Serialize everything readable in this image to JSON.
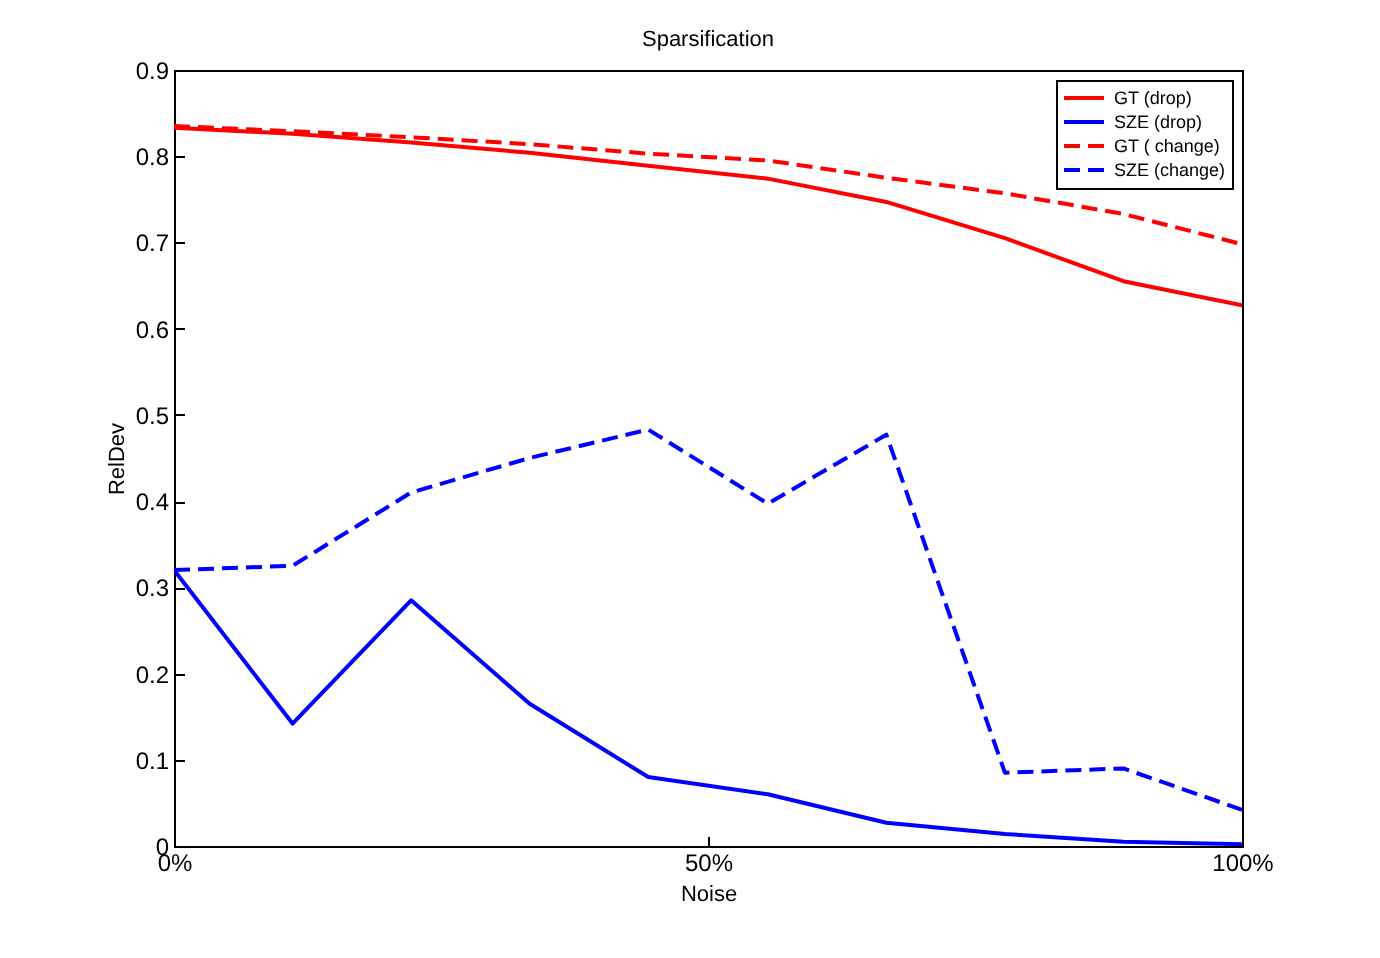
{
  "chart_data": {
    "type": "line",
    "title": "Sparsification",
    "xlabel": "Noise",
    "ylabel": "RelDev",
    "x": [
      0,
      11.1,
      22.2,
      33.3,
      44.4,
      55.6,
      66.7,
      77.8,
      88.9,
      100
    ],
    "xlim": [
      0,
      100
    ],
    "xticks": [
      {
        "value": 0,
        "label": "0%"
      },
      {
        "value": 50,
        "label": "50%"
      },
      {
        "value": 100,
        "label": "100%"
      }
    ],
    "ylim": [
      0,
      0.9
    ],
    "yticks": [
      {
        "value": 0,
        "label": "0"
      },
      0.1,
      0.2,
      0.3,
      0.4,
      0.5,
      0.6,
      0.7,
      0.8,
      0.9
    ],
    "legend": "top right",
    "grid": false,
    "marker": "none",
    "series": [
      {
        "name": "GT (drop)",
        "color": "#ff0000",
        "line_style": "solid",
        "values": [
          0.833,
          0.826,
          0.816,
          0.804,
          0.789,
          0.774,
          0.747,
          0.705,
          0.655,
          0.627
        ]
      },
      {
        "name": "SZE (drop)",
        "color": "#0000ff",
        "line_style": "solid",
        "values": [
          0.32,
          0.142,
          0.285,
          0.165,
          0.08,
          0.06,
          0.027,
          0.014,
          0.005,
          0.002
        ]
      },
      {
        "name": "GT ( change)",
        "color": "#ff0000",
        "line_style": "dashed",
        "values": [
          0.835,
          0.829,
          0.822,
          0.814,
          0.803,
          0.795,
          0.775,
          0.757,
          0.733,
          0.698
        ]
      },
      {
        "name": "SZE (change)",
        "color": "#0000ff",
        "line_style": "dashed",
        "values": [
          0.32,
          0.325,
          0.41,
          0.45,
          0.483,
          0.397,
          0.477,
          0.085,
          0.09,
          0.042
        ]
      }
    ]
  }
}
